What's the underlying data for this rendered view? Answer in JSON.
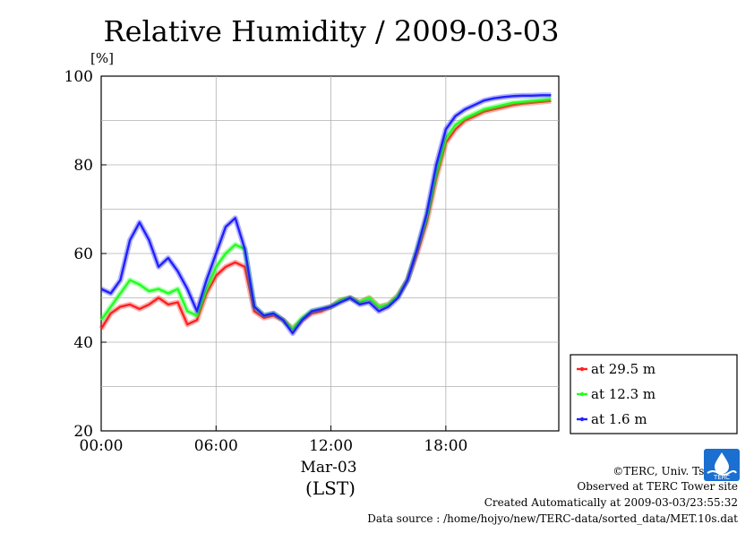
{
  "chart_data": {
    "type": "line",
    "title": "Relative Humidity / 2009-03-03",
    "unit_label": "[%]",
    "ylim": [
      20,
      100
    ],
    "yticks": [
      "100",
      "80",
      "60",
      "40",
      "20"
    ],
    "xlim_hours": [
      0,
      24
    ],
    "xticks": [
      "00:00",
      "06:00",
      "12:00",
      "18:00"
    ],
    "x_sublabel": "Mar-03",
    "x_axis_label": "(LST)",
    "grid": true,
    "legend_position": "bottom-right-outside",
    "x_hours": [
      0,
      0.5,
      1,
      1.5,
      2,
      2.5,
      3,
      3.5,
      4,
      4.5,
      5,
      5.5,
      6,
      6.5,
      7,
      7.5,
      8,
      8.5,
      9,
      9.5,
      10,
      10.5,
      11,
      11.5,
      12,
      12.5,
      13,
      13.5,
      14,
      14.5,
      15,
      15.5,
      16,
      16.5,
      17,
      17.5,
      18,
      18.5,
      19,
      19.5,
      20,
      20.5,
      21,
      21.5,
      22,
      22.5,
      23,
      23.5
    ],
    "series": [
      {
        "name": "at 29.5 m",
        "color": "#ff2020",
        "values": [
          43,
          46.5,
          48,
          48.5,
          47.5,
          48.5,
          50,
          48.5,
          49,
          44,
          45,
          51,
          55,
          57,
          58,
          57,
          47,
          45.5,
          46,
          45,
          43,
          45,
          46.5,
          47,
          48,
          49.5,
          50,
          49,
          50,
          48,
          48.5,
          50.5,
          54,
          60,
          67,
          77,
          85,
          88,
          90,
          91,
          92,
          92.5,
          93,
          93.5,
          93.8,
          94,
          94.2,
          94.4
        ]
      },
      {
        "name": "at 12.3 m",
        "color": "#20ff20",
        "values": [
          45,
          48,
          51,
          54,
          53,
          51.5,
          52,
          51,
          52,
          47,
          46,
          52,
          57,
          60,
          62,
          61,
          48,
          46,
          46.5,
          45,
          43,
          45.5,
          47,
          47.5,
          48,
          49.5,
          50,
          49,
          50,
          48,
          48.5,
          50.5,
          54,
          61,
          68,
          78,
          86,
          89,
          90.5,
          91.5,
          92.5,
          93,
          93.5,
          94,
          94.2,
          94.4,
          94.6,
          94.8
        ]
      },
      {
        "name": "at 1.6 m",
        "color": "#2020ff",
        "values": [
          52,
          51,
          54,
          63,
          67,
          63,
          57,
          59,
          56,
          52,
          47,
          54,
          60,
          66,
          68,
          61,
          48,
          46,
          46.5,
          45,
          42,
          45,
          47,
          47.5,
          48,
          49,
          50,
          48.5,
          49,
          47,
          48,
          50,
          54,
          61,
          69,
          80,
          88,
          91,
          92.5,
          93.5,
          94.5,
          95,
          95.3,
          95.5,
          95.6,
          95.6,
          95.7,
          95.7
        ]
      }
    ]
  },
  "credits": {
    "copyright": "©TERC, Univ. Tsukuba",
    "site": "Observed at TERC Tower site",
    "created": "Created Automatically at 2009-03-03/23:55:32",
    "source": "Data source : /home/hojyo/new/TERC-data/sorted_data/MET.10s.dat"
  },
  "logo": {
    "text": "TERC",
    "icon": "terc-logo-icon",
    "color": "#1a6fd0"
  }
}
